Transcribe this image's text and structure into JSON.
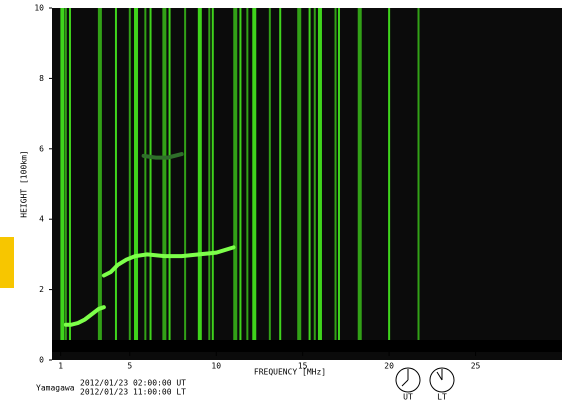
{
  "chart_data": {
    "type": "ionogram",
    "x_label": "FREQUENCY [MHz]",
    "y_label": "HEIGHT [100km]",
    "station": "Yamagawa",
    "time_ut": "2012/01/23 02:00:00 UT",
    "time_lt": "2012/01/23 11:00:00 LT",
    "clock_labels": [
      "UT",
      "LT"
    ],
    "xlim": [
      0.5,
      30
    ],
    "xticks": [
      1,
      5,
      10,
      15,
      20,
      25
    ],
    "ylim": [
      0,
      10
    ],
    "yticks": [
      0,
      2,
      4,
      6,
      8,
      10
    ],
    "series": [
      {
        "color": "#7dff4a",
        "x": [
          1.3,
          1.6,
          2.0,
          2.4,
          2.8,
          3.2,
          3.5
        ],
        "y": [
          1.0,
          1.0,
          1.05,
          1.15,
          1.3,
          1.45,
          1.5
        ]
      },
      {
        "color": "#7dff4a",
        "x": [
          3.5,
          3.9,
          4.3,
          4.8,
          5.3,
          6.0,
          7.0,
          8.0,
          9.0,
          10.0,
          11.0
        ],
        "y": [
          2.4,
          2.5,
          2.7,
          2.85,
          2.95,
          3.0,
          2.95,
          2.95,
          3.0,
          3.05,
          3.2
        ]
      },
      {
        "color": "#2f6f2a",
        "x": [
          5.8,
          6.5,
          7.2,
          8.0
        ],
        "y": [
          5.8,
          5.75,
          5.75,
          5.85
        ]
      }
    ],
    "interference_mhz": [
      1.1,
      1.3,
      1.54,
      3.27,
      4.2,
      5.0,
      5.36,
      5.9,
      6.2,
      7.0,
      7.3,
      8.2,
      9.05,
      9.6,
      9.8,
      11.1,
      11.4,
      11.8,
      12.2,
      13.1,
      13.7,
      14.8,
      15.4,
      15.7,
      16.0,
      16.9,
      17.1,
      18.3,
      20.0,
      21.7
    ],
    "interference_color": "#3fd41c"
  }
}
